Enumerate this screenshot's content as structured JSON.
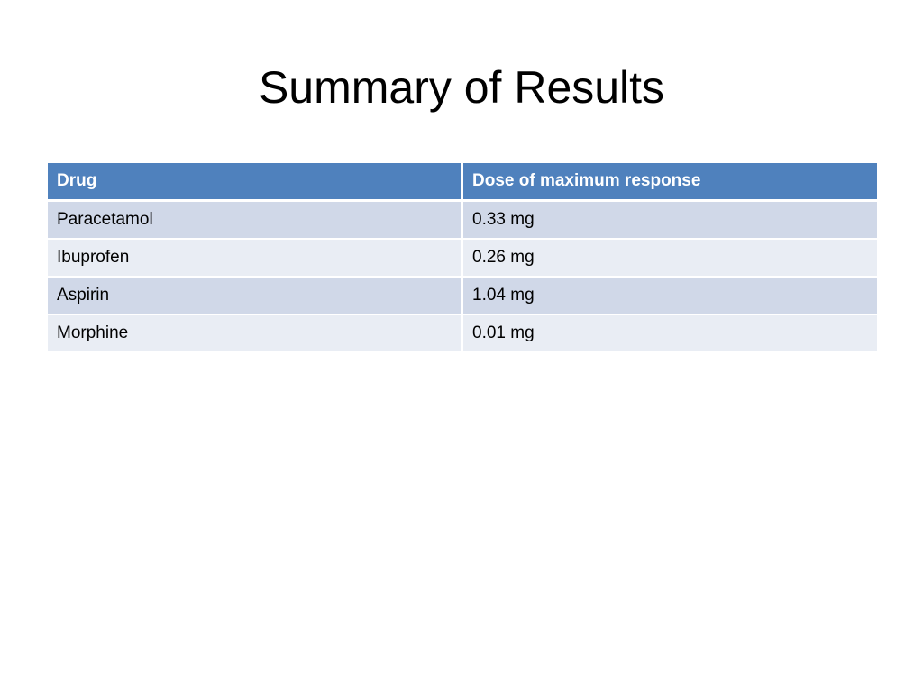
{
  "slide": {
    "title": "Summary of Results"
  },
  "table": {
    "headers": [
      "Drug",
      "Dose of maximum response"
    ],
    "rows": [
      [
        "Paracetamol",
        "0.33 mg"
      ],
      [
        "Ibuprofen",
        "0.26 mg"
      ],
      [
        "Aspirin",
        "1.04 mg"
      ],
      [
        "Morphine",
        "0.01 mg"
      ]
    ]
  },
  "colors": {
    "header_bg": "#4f81bd",
    "row_band_1": "#d0d8e8",
    "row_band_2": "#e9edf4"
  }
}
